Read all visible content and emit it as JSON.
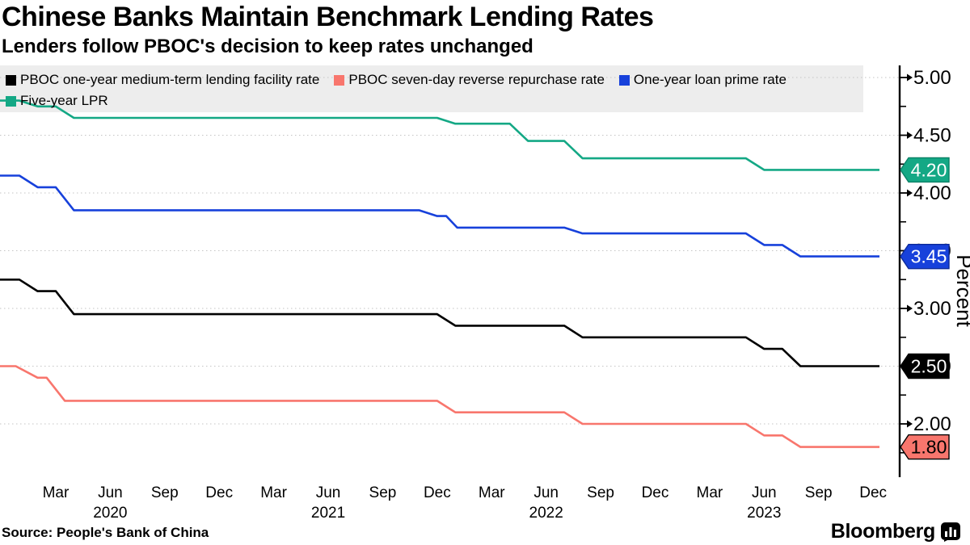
{
  "title": "Chinese Banks Maintain Benchmark Lending Rates",
  "subtitle": "Lenders follow PBOC's decision to keep rates unchanged",
  "source": "Source: People's Bank of China",
  "brand": {
    "name": "Bloomberg",
    "icon": "bloomberg-bar-chart-bubble"
  },
  "legend": {
    "rows": [
      [
        0,
        1,
        2
      ],
      [
        3
      ]
    ]
  },
  "chart_data": {
    "type": "line",
    "title": "Chinese Banks Maintain Benchmark Lending Rates",
    "xlabel": "",
    "ylabel": "Percent",
    "x_unit": "months since Jan 2020 (0 = mid-Jan 2020)",
    "ylim": [
      1.75,
      5.0
    ],
    "grid": "dotted horizontal at every 0.50",
    "legend_position": "top, gray band, two rows",
    "y_major_ticks": [
      {
        "v": 5.0,
        "label": "5.00"
      },
      {
        "v": 4.5,
        "label": "4.50"
      },
      {
        "v": 4.0,
        "label": "4.00"
      },
      {
        "v": 3.5,
        "label": "3.50"
      },
      {
        "v": 3.0,
        "label": "3.00"
      },
      {
        "v": 2.5,
        "label": "2.50"
      },
      {
        "v": 2.0,
        "label": "2.00"
      }
    ],
    "y_minor_ticks": [
      4.75,
      4.25,
      3.75,
      3.25,
      2.75,
      2.25,
      1.75
    ],
    "x_ticks": [
      {
        "m": 2.5,
        "label": "Mar"
      },
      {
        "m": 5.5,
        "label": "Jun",
        "year": "2020"
      },
      {
        "m": 8.5,
        "label": "Sep"
      },
      {
        "m": 11.5,
        "label": "Dec"
      },
      {
        "m": 14.5,
        "label": "Mar"
      },
      {
        "m": 17.5,
        "label": "Jun",
        "year": "2021"
      },
      {
        "m": 20.5,
        "label": "Sep"
      },
      {
        "m": 23.5,
        "label": "Dec"
      },
      {
        "m": 26.5,
        "label": "Mar"
      },
      {
        "m": 29.5,
        "label": "Jun",
        "year": "2022"
      },
      {
        "m": 32.5,
        "label": "Sep"
      },
      {
        "m": 35.5,
        "label": "Dec"
      },
      {
        "m": 38.5,
        "label": "Mar"
      },
      {
        "m": 41.5,
        "label": "Jun",
        "year": "2023"
      },
      {
        "m": 44.5,
        "label": "Sep"
      },
      {
        "m": 47.5,
        "label": "Dec"
      }
    ],
    "series": [
      {
        "name": "PBOC one-year medium-term lending facility rate",
        "color": "#000000",
        "end_value": 2.5,
        "end_label": "2.50",
        "badge_bg": "#000000",
        "badge_fg": "#ffffff",
        "badge_border": "#000000",
        "points": [
          [
            -0.6,
            3.25
          ],
          [
            0.5,
            3.25
          ],
          [
            1.5,
            3.15
          ],
          [
            2.5,
            3.15
          ],
          [
            3.5,
            2.95
          ],
          [
            23.5,
            2.95
          ],
          [
            24.5,
            2.85
          ],
          [
            30.5,
            2.85
          ],
          [
            31.5,
            2.75
          ],
          [
            40.5,
            2.75
          ],
          [
            41.5,
            2.65
          ],
          [
            42.5,
            2.65
          ],
          [
            43.5,
            2.5
          ],
          [
            47.85,
            2.5
          ]
        ]
      },
      {
        "name": "PBOC seven-day reverse repurchase rate",
        "color": "#f8766d",
        "end_value": 1.8,
        "end_label": "1.80",
        "badge_bg": "#f8766d",
        "badge_fg": "#000000",
        "badge_border": "#000000",
        "points": [
          [
            -0.6,
            2.5
          ],
          [
            0.3,
            2.5
          ],
          [
            1.5,
            2.4
          ],
          [
            2.0,
            2.4
          ],
          [
            3.0,
            2.2
          ],
          [
            23.5,
            2.2
          ],
          [
            24.5,
            2.1
          ],
          [
            30.5,
            2.1
          ],
          [
            31.5,
            2.0
          ],
          [
            40.5,
            2.0
          ],
          [
            41.5,
            1.9
          ],
          [
            42.5,
            1.9
          ],
          [
            43.5,
            1.8
          ],
          [
            47.85,
            1.8
          ]
        ]
      },
      {
        "name": "One-year loan prime rate",
        "color": "#1741db",
        "end_value": 3.45,
        "end_label": "3.45",
        "badge_bg": "#1741db",
        "badge_fg": "#ffffff",
        "badge_border": "#0d2a99",
        "points": [
          [
            -0.6,
            4.15
          ],
          [
            0.5,
            4.15
          ],
          [
            1.5,
            4.05
          ],
          [
            2.5,
            4.05
          ],
          [
            3.5,
            3.85
          ],
          [
            22.5,
            3.85
          ],
          [
            23.5,
            3.8
          ],
          [
            24.0,
            3.8
          ],
          [
            24.6,
            3.7
          ],
          [
            30.5,
            3.7
          ],
          [
            31.5,
            3.65
          ],
          [
            40.5,
            3.65
          ],
          [
            41.5,
            3.55
          ],
          [
            42.5,
            3.55
          ],
          [
            43.5,
            3.45
          ],
          [
            47.85,
            3.45
          ]
        ]
      },
      {
        "name": "Five-year LPR",
        "color": "#14a885",
        "end_value": 4.2,
        "end_label": "4.20",
        "badge_bg": "#14a885",
        "badge_fg": "#ffffff",
        "badge_border": "#0b8066",
        "points": [
          [
            -0.6,
            4.8
          ],
          [
            0.5,
            4.8
          ],
          [
            1.5,
            4.75
          ],
          [
            2.5,
            4.75
          ],
          [
            3.5,
            4.65
          ],
          [
            23.5,
            4.65
          ],
          [
            24.5,
            4.6
          ],
          [
            27.5,
            4.6
          ],
          [
            28.5,
            4.45
          ],
          [
            30.5,
            4.45
          ],
          [
            31.5,
            4.3
          ],
          [
            40.5,
            4.3
          ],
          [
            41.5,
            4.2
          ],
          [
            47.85,
            4.2
          ]
        ]
      }
    ],
    "colors": {
      "grid": "#c4c4c4",
      "axis": "#000000",
      "legend_bg": "#ededed"
    }
  }
}
